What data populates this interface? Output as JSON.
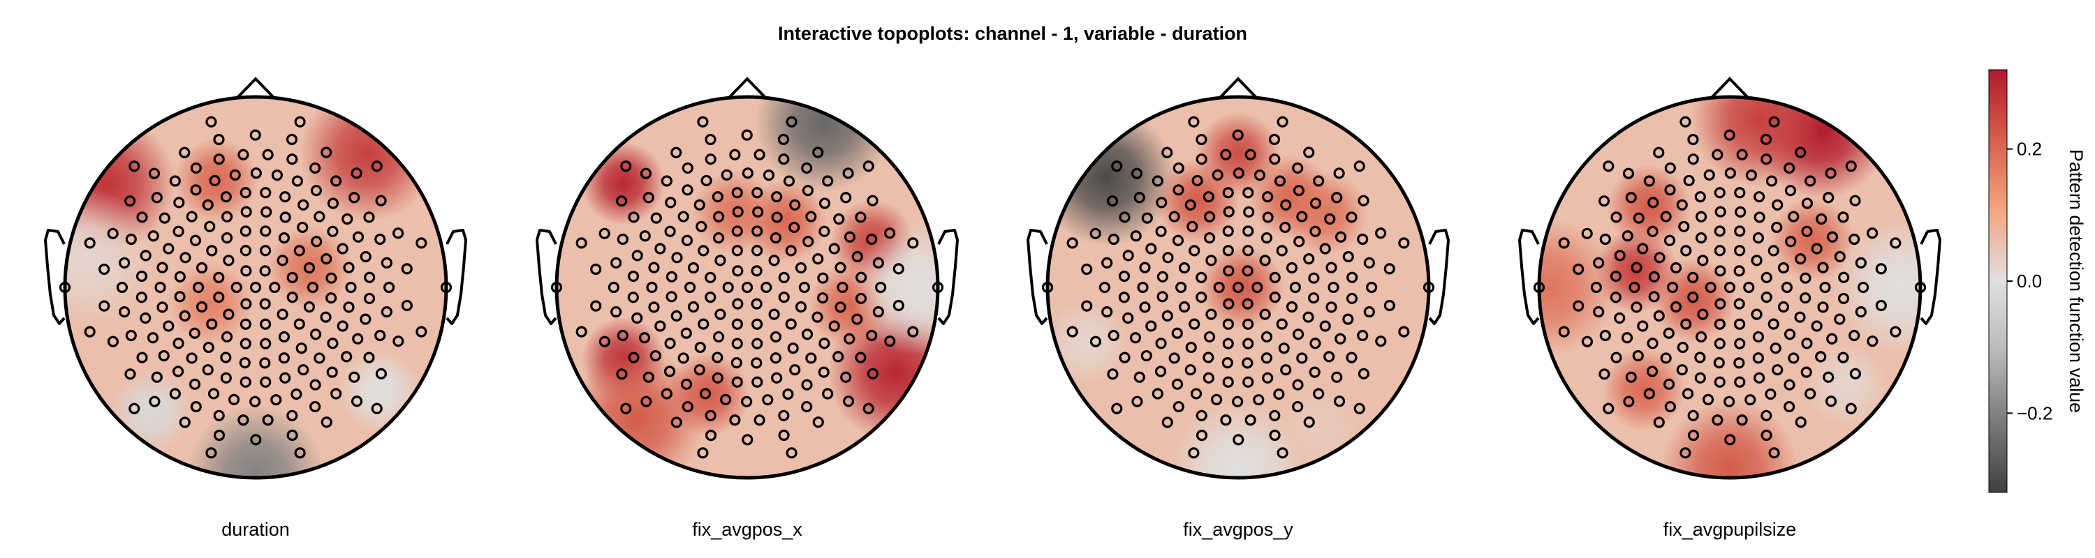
{
  "chart_data": {
    "type": "heatmap",
    "title": "Interactive topoplots: channel - 1, variable - duration",
    "colorbar": {
      "label": "Pattern detection function value",
      "range": [
        -0.32,
        0.32
      ],
      "ticks": [
        -0.2,
        0.0,
        0.2
      ],
      "tick_labels": [
        "−0.2",
        "0.0",
        "0.2"
      ],
      "colormap": [
        "#404040",
        "#7a7a7a",
        "#bababa",
        "#e0e0e0",
        "#f4a582",
        "#d6604d",
        "#b2182b"
      ]
    },
    "baseline_value": 0.06,
    "panels": [
      {
        "label": "duration",
        "hotspots": [
          {
            "az": 50,
            "r": 0.92,
            "v": 0.26
          },
          {
            "az": 145,
            "r": 0.95,
            "v": 0.28
          },
          {
            "az": 110,
            "r": 0.6,
            "v": 0.2
          },
          {
            "az": 20,
            "r": 0.3,
            "v": 0.18
          },
          {
            "az": 200,
            "r": 0.25,
            "v": 0.16
          },
          {
            "az": 270,
            "r": 0.98,
            "v": -0.2
          },
          {
            "az": 230,
            "r": 0.85,
            "v": -0.02
          },
          {
            "az": 320,
            "r": 0.85,
            "v": 0.0
          },
          {
            "az": 170,
            "r": 0.9,
            "v": 0.02
          }
        ]
      },
      {
        "label": "fix_avgpos_x",
        "hotspots": [
          {
            "az": 65,
            "r": 0.95,
            "v": -0.25
          },
          {
            "az": 140,
            "r": 0.85,
            "v": 0.3
          },
          {
            "az": 210,
            "r": 0.75,
            "v": 0.28
          },
          {
            "az": 330,
            "r": 0.9,
            "v": 0.3
          },
          {
            "az": 20,
            "r": 0.7,
            "v": 0.25
          },
          {
            "az": 60,
            "r": 0.4,
            "v": 0.2
          },
          {
            "az": 250,
            "r": 0.6,
            "v": 0.22
          },
          {
            "az": 350,
            "r": 0.55,
            "v": 0.2
          },
          {
            "az": 100,
            "r": 0.4,
            "v": 0.18
          },
          {
            "az": 230,
            "r": 0.9,
            "v": 0.22
          },
          {
            "az": 0,
            "r": 0.9,
            "v": 0.0
          }
        ]
      },
      {
        "label": "fix_avgpos_y",
        "hotspots": [
          {
            "az": 140,
            "r": 0.9,
            "v": -0.3
          },
          {
            "az": 90,
            "r": 0.7,
            "v": 0.24
          },
          {
            "az": 115,
            "r": 0.5,
            "v": 0.22
          },
          {
            "az": 0,
            "r": 0.02,
            "v": 0.22
          },
          {
            "az": 60,
            "r": 0.55,
            "v": 0.2
          },
          {
            "az": 40,
            "r": 0.6,
            "v": 0.18
          },
          {
            "az": 270,
            "r": 0.95,
            "v": 0.0
          },
          {
            "az": 300,
            "r": 0.85,
            "v": 0.04
          },
          {
            "az": 200,
            "r": 0.85,
            "v": 0.02
          }
        ]
      },
      {
        "label": "fix_avgpupilsize",
        "hotspots": [
          {
            "az": 60,
            "r": 0.95,
            "v": 0.32
          },
          {
            "az": 80,
            "r": 0.9,
            "v": 0.26
          },
          {
            "az": 170,
            "r": 0.5,
            "v": 0.26
          },
          {
            "az": 135,
            "r": 0.6,
            "v": 0.22
          },
          {
            "az": 200,
            "r": 0.2,
            "v": 0.22
          },
          {
            "az": 30,
            "r": 0.5,
            "v": 0.2
          },
          {
            "az": 180,
            "r": 0.95,
            "v": 0.18
          },
          {
            "az": 230,
            "r": 0.7,
            "v": 0.2
          },
          {
            "az": 270,
            "r": 0.95,
            "v": 0.22
          },
          {
            "az": 320,
            "r": 0.8,
            "v": 0.02
          },
          {
            "az": 0,
            "r": 0.9,
            "v": 0.0
          }
        ]
      }
    ],
    "electrode_rings": [
      {
        "rho": 0.0,
        "count": 1,
        "offset": 0
      },
      {
        "rho": 0.1,
        "count": 6,
        "offset": 0
      },
      {
        "rho": 0.2,
        "count": 12,
        "offset": 15
      },
      {
        "rho": 0.3,
        "count": 18,
        "offset": 0
      },
      {
        "rho": 0.4,
        "count": 24,
        "offset": 7
      },
      {
        "rho": 0.5,
        "count": 30,
        "offset": 0
      },
      {
        "rho": 0.6,
        "count": 34,
        "offset": 5
      },
      {
        "rho": 0.7,
        "count": 34,
        "offset": 0
      },
      {
        "rho": 0.8,
        "count": 26,
        "offset": 7
      },
      {
        "rho": 0.9,
        "count": 12,
        "offset": 15
      },
      {
        "rho": 1.0,
        "count": 2,
        "offset": 0
      }
    ]
  }
}
